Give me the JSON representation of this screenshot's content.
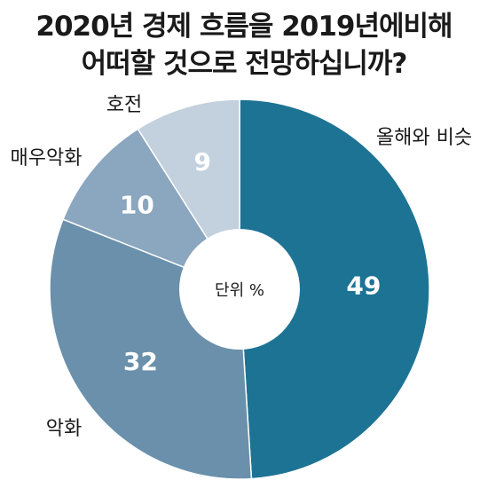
{
  "chart_data": {
    "type": "pie",
    "title": "2020년 경제 흐름을 2019년에비해",
    "subtitle": "어떠할 것으로 전망하십니까?",
    "center_label": "단위 %",
    "categories": [
      "올해와 비슷",
      "악화",
      "매우악화",
      "호전"
    ],
    "values": [
      49,
      32,
      10,
      9
    ],
    "colors": [
      "#1d7394",
      "#6a90ab",
      "#8ba6bf",
      "#c3d0de"
    ]
  }
}
